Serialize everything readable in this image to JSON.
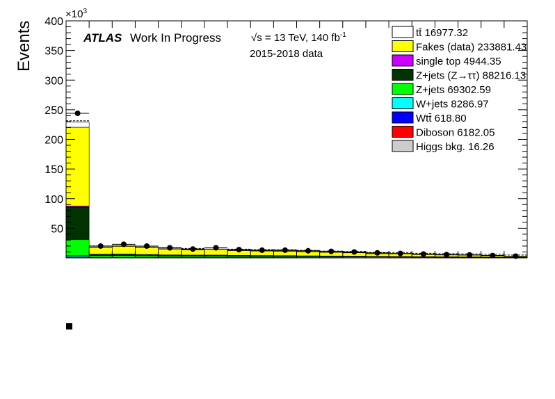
{
  "chart_data": {
    "type": "bar",
    "stacked": true,
    "ylabel": "Events",
    "y_multiplier_label": "×10",
    "y_multiplier_exp": "3",
    "ylim": [
      0,
      400
    ],
    "yticks": [
      50,
      100,
      150,
      200,
      250,
      300,
      350,
      400
    ],
    "nbins": 20,
    "series": [
      {
        "name": "Diboson 6182.05",
        "color": "#ff0000",
        "values": [
          1.6,
          0.3,
          0.3,
          0.3,
          0.25,
          0.25,
          0.25,
          0.2,
          0.2,
          0.2,
          0.15,
          0.15,
          0.15,
          0.1,
          0.1,
          0.1,
          0.08,
          0.08,
          0.05,
          0.05
        ]
      },
      {
        "name": "Wtt̄ 618.80",
        "color": "#0000ff",
        "values": [
          0.2,
          0.04,
          0.04,
          0.04,
          0.03,
          0.03,
          0.03,
          0.02,
          0.02,
          0.02,
          0.02,
          0.02,
          0.02,
          0.01,
          0.01,
          0.01,
          0.01,
          0.01,
          0.01,
          0.01
        ]
      },
      {
        "name": "W+jets 8286.97",
        "color": "#00ffff",
        "values": [
          2.0,
          0.5,
          0.5,
          0.4,
          0.35,
          0.35,
          0.35,
          0.3,
          0.3,
          0.3,
          0.25,
          0.25,
          0.2,
          0.2,
          0.2,
          0.15,
          0.15,
          0.15,
          0.1,
          0.1
        ]
      },
      {
        "name": "Z+jets 69302.59",
        "color": "#00ff00",
        "values": [
          27,
          2.8,
          2.9,
          2.6,
          2.3,
          2.1,
          2.1,
          1.9,
          1.8,
          1.7,
          1.6,
          1.5,
          1.4,
          1.2,
          1.1,
          1.0,
          0.9,
          0.8,
          0.7,
          0.6
        ]
      },
      {
        "name": "Z+jets (Z→ττ) 88216.13",
        "color": "#003300",
        "values": [
          55,
          2.4,
          2.5,
          2.2,
          1.9,
          1.8,
          1.8,
          1.6,
          1.5,
          1.4,
          1.3,
          1.2,
          1.1,
          1.0,
          0.9,
          0.8,
          0.7,
          0.6,
          0.6,
          0.5
        ]
      },
      {
        "name": "single top 4944.35",
        "color": "#cc00ff",
        "values": [
          1.7,
          0.3,
          0.3,
          0.25,
          0.25,
          0.25,
          0.25,
          0.2,
          0.2,
          0.2,
          0.15,
          0.15,
          0.15,
          0.1,
          0.1,
          0.1,
          0.08,
          0.08,
          0.05,
          0.05
        ]
      },
      {
        "name": "Fakes (data) 233881.43",
        "color": "#ffff00",
        "values": [
          133,
          11,
          13,
          11,
          9.5,
          8.5,
          9.5,
          8,
          7.5,
          7.5,
          7,
          6,
          5.5,
          4.5,
          4.5,
          3.5,
          3,
          3,
          2.5,
          1.5
        ]
      },
      {
        "name": "tt̄ 16977.32",
        "color": "#ffffff",
        "values": [
          9,
          1.2,
          1.3,
          1.1,
          1.0,
          0.9,
          0.9,
          0.8,
          0.7,
          0.7,
          0.6,
          0.5,
          0.5,
          0.4,
          0.4,
          0.3,
          0.3,
          0.3,
          0.2,
          0.2
        ]
      },
      {
        "name": "Higgs bkg. 16.26",
        "color": "#cccccc",
        "values": [
          0.1,
          0,
          0,
          0,
          0,
          0,
          0,
          0,
          0,
          0,
          0,
          0,
          0,
          0,
          0,
          0,
          0,
          0,
          0,
          0
        ]
      }
    ],
    "data_points": [
      244,
      20,
      23,
      20,
      17,
      15,
      17,
      14,
      13,
      13,
      12,
      11,
      10,
      8.5,
      7.5,
      6.5,
      5.5,
      5,
      4,
      3
    ],
    "text_annotations": {
      "atlas": "ATLAS",
      "status": "Work In Progress",
      "energy_prefix": "√s = 13 TeV, 140 fb",
      "energy_exp": "-1",
      "data_period": "2015-2018 data"
    },
    "legend_position": "top-right"
  }
}
